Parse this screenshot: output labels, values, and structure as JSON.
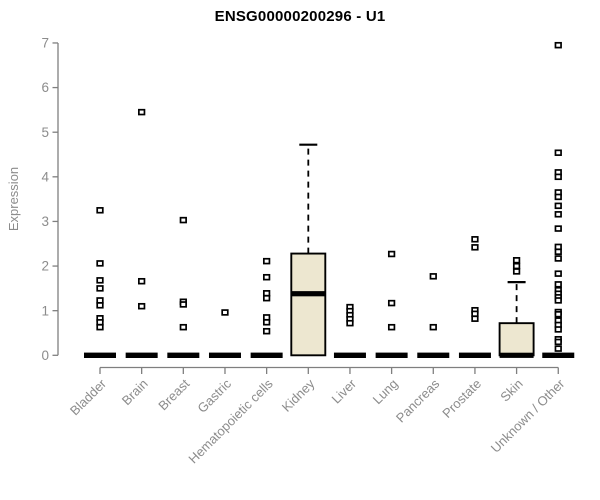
{
  "chart_data": {
    "type": "boxplot",
    "title": "ENSG00000200296 - U1",
    "ylabel": "Expression",
    "ylim": [
      0,
      7
    ],
    "yticks": [
      0,
      1,
      2,
      3,
      4,
      5,
      6,
      7
    ],
    "grid": false,
    "legend": false,
    "categories": [
      "Bladder",
      "Brain",
      "Breast",
      "Gastric",
      "Hematopoietic cells",
      "Kidney",
      "Liver",
      "Lung",
      "Pancreas",
      "Prostate",
      "Skin",
      "Unknown / Other"
    ],
    "boxes": [
      {
        "category": "Bladder",
        "q1": 0,
        "median": 0,
        "q3": 0,
        "whisker_low": 0,
        "whisker_high": 0,
        "outliers": [
          3.25,
          2.06,
          1.68,
          1.5,
          1.23,
          1.12,
          0.83,
          0.74,
          0.63
        ]
      },
      {
        "category": "Brain",
        "q1": 0,
        "median": 0,
        "q3": 0,
        "whisker_low": 0,
        "whisker_high": 0,
        "outliers": [
          5.45,
          1.66,
          1.1
        ]
      },
      {
        "category": "Breast",
        "q1": 0,
        "median": 0,
        "q3": 0,
        "whisker_low": 0,
        "whisker_high": 0,
        "outliers": [
          3.03,
          1.2,
          1.14,
          0.63
        ]
      },
      {
        "category": "Gastric",
        "q1": 0,
        "median": 0,
        "q3": 0,
        "whisker_low": 0,
        "whisker_high": 0,
        "outliers": [
          0.96
        ]
      },
      {
        "category": "Hematopoietic cells",
        "q1": 0,
        "median": 0,
        "q3": 0,
        "whisker_low": 0,
        "whisker_high": 0,
        "outliers": [
          2.11,
          1.75,
          1.39,
          1.28,
          0.85,
          0.74,
          0.54
        ]
      },
      {
        "category": "Kidney",
        "q1": 0,
        "median": 1.38,
        "q3": 2.28,
        "whisker_low": 0,
        "whisker_high": 4.72,
        "outliers": []
      },
      {
        "category": "Liver",
        "q1": 0,
        "median": 0,
        "q3": 0,
        "whisker_low": 0,
        "whisker_high": 0,
        "outliers": [
          1.08,
          0.99,
          0.9,
          0.81,
          0.72
        ]
      },
      {
        "category": "Lung",
        "q1": 0,
        "median": 0,
        "q3": 0,
        "whisker_low": 0,
        "whisker_high": 0,
        "outliers": [
          2.27,
          1.17,
          0.63
        ]
      },
      {
        "category": "Pancreas",
        "q1": 0,
        "median": 0,
        "q3": 0,
        "whisker_low": 0,
        "whisker_high": 0,
        "outliers": [
          1.77,
          0.63
        ]
      },
      {
        "category": "Prostate",
        "q1": 0,
        "median": 0,
        "q3": 0,
        "whisker_low": 0,
        "whisker_high": 0,
        "outliers": [
          2.6,
          2.42,
          1.01,
          0.93,
          0.82
        ]
      },
      {
        "category": "Skin",
        "q1": 0,
        "median": 0,
        "q3": 0.72,
        "whisker_low": 0,
        "whisker_high": 1.64,
        "outliers": [
          2.13,
          2.0,
          1.88
        ]
      },
      {
        "category": "Unknown / Other",
        "q1": 0,
        "median": 0,
        "q3": 0,
        "whisker_low": 0,
        "whisker_high": 0,
        "outliers": [
          6.95,
          4.54,
          4.1,
          4.0,
          3.65,
          3.55,
          3.35,
          3.16,
          2.84,
          2.43,
          2.32,
          2.17,
          1.83,
          1.59,
          1.46,
          1.38,
          1.3,
          1.23,
          0.97,
          0.92,
          0.78,
          0.68,
          0.58,
          0.36,
          0.3,
          0.15
        ]
      }
    ],
    "colors": {
      "box_fill": "#ede7d0",
      "box_stroke": "#000000",
      "median": "#000000",
      "point_stroke": "#000000",
      "point_fill": "#ffffff",
      "axis_line": "#7f7f7f",
      "tick_text": "#8c8c8c",
      "title_text": "#000000"
    }
  }
}
